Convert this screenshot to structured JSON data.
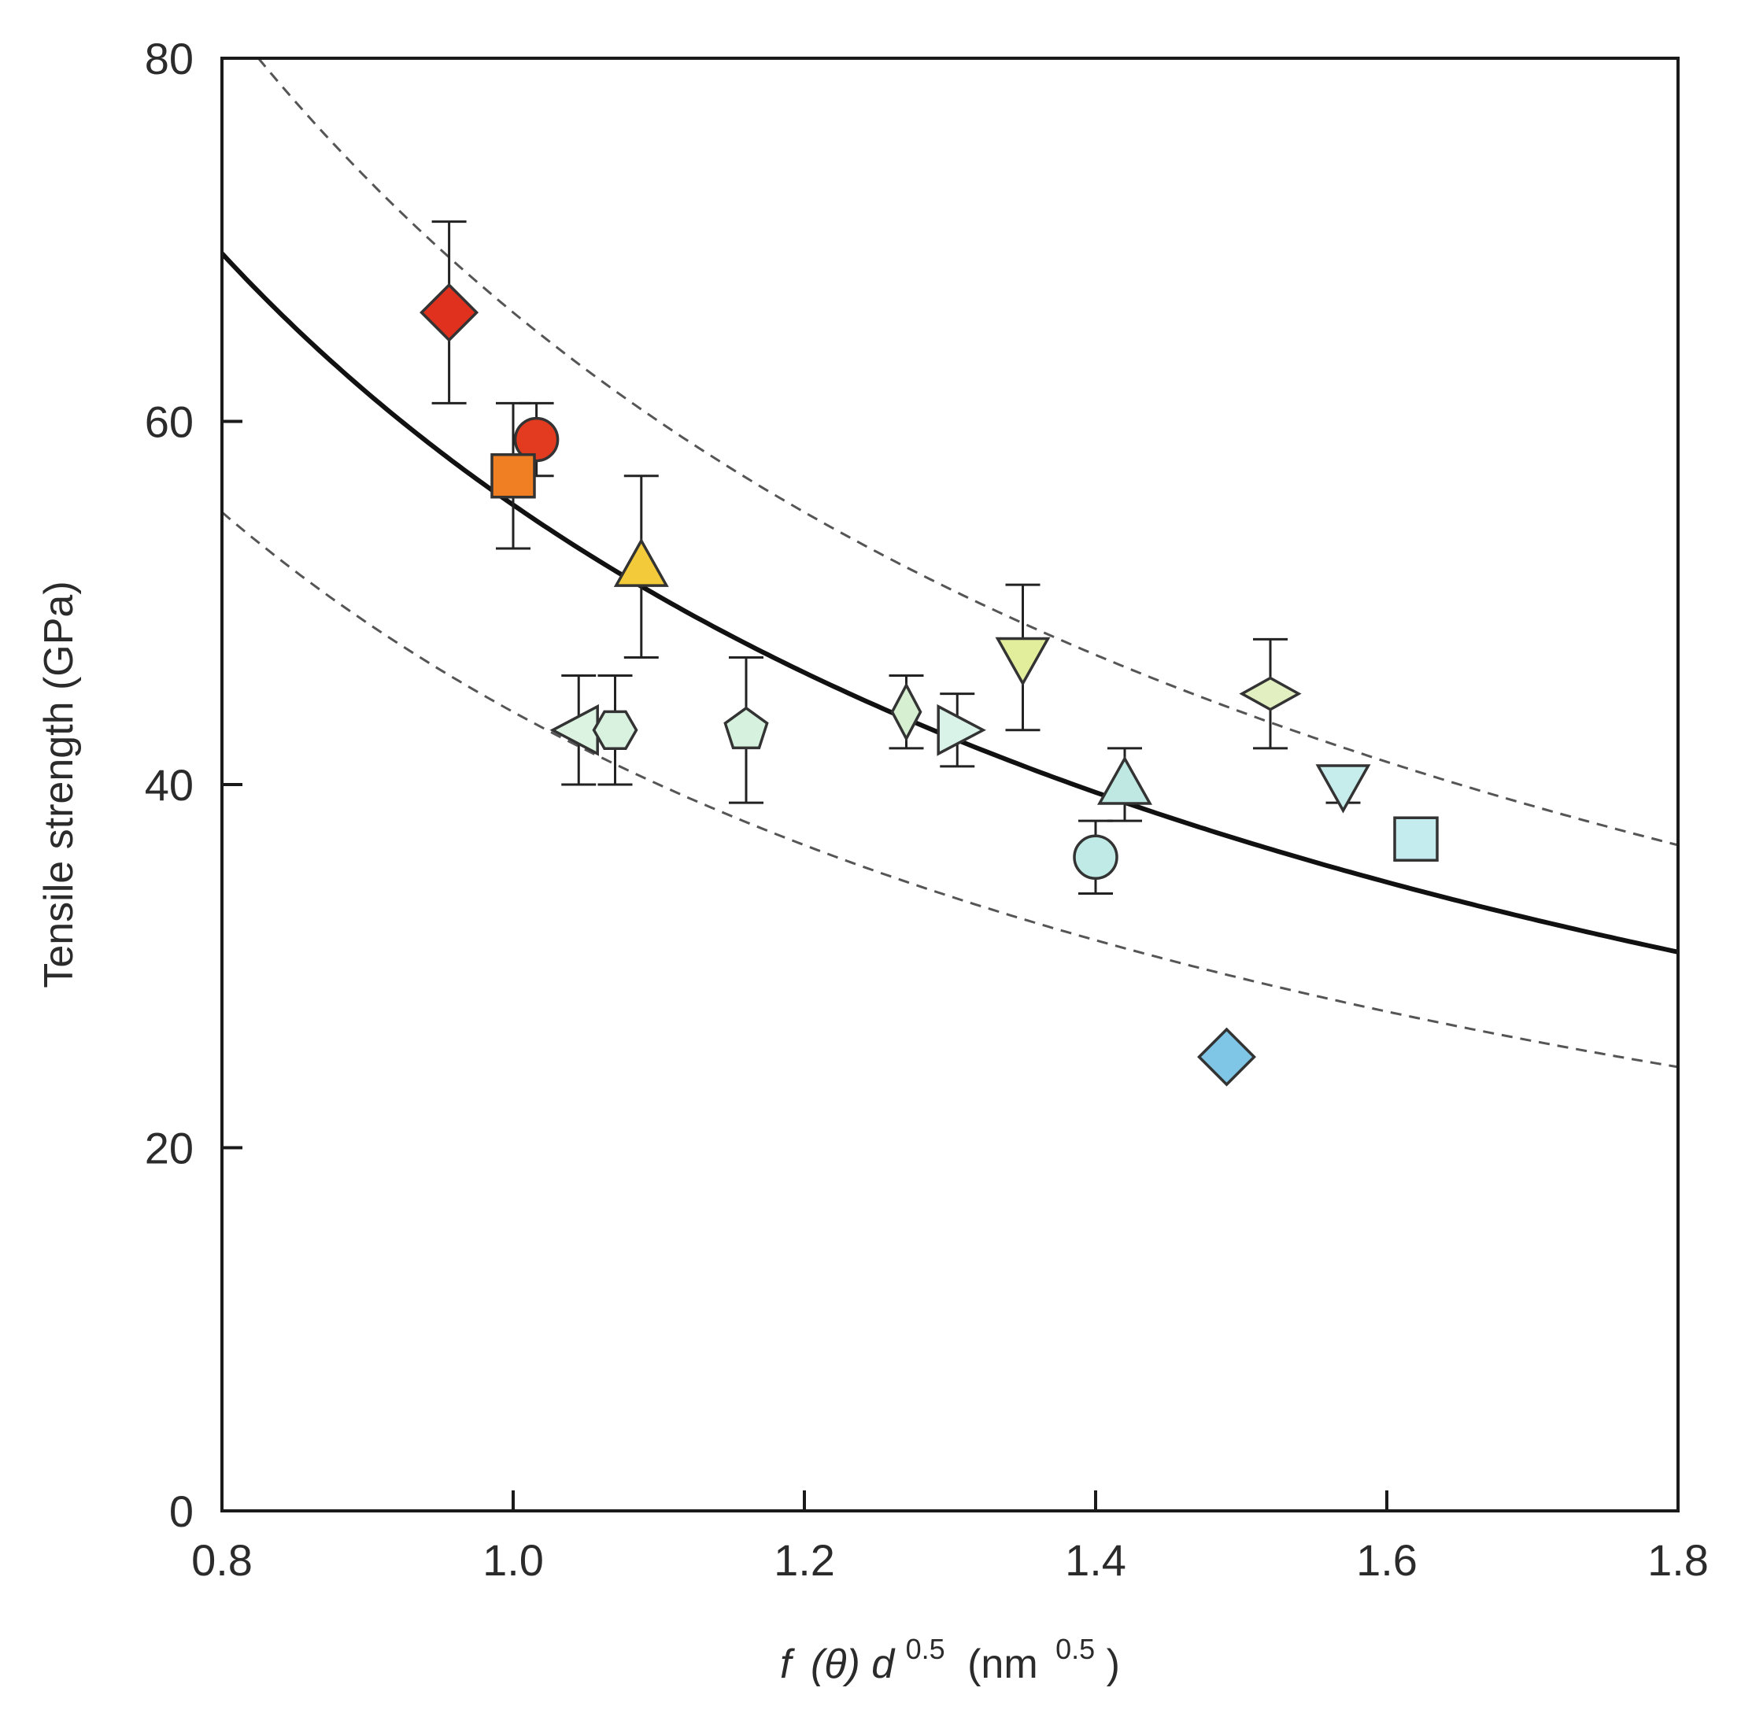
{
  "chart_data": {
    "type": "scatter",
    "title": "",
    "xlabel": {
      "f": "f",
      "theta": "(θ)",
      "d": "d",
      "d_exp": "0.5",
      "unit_open": "(nm",
      "unit_exp": "0.5",
      "unit_close": ")"
    },
    "ylabel": "Tensile strength (GPa)",
    "xlim": [
      0.8,
      1.8
    ],
    "ylim": [
      0,
      80
    ],
    "xticks": [
      0.8,
      1.0,
      1.2,
      1.4,
      1.6,
      1.8
    ],
    "xtick_labels": [
      "0.8",
      "1.0",
      "1.2",
      "1.4",
      "1.6",
      "1.8"
    ],
    "yticks": [
      0,
      20,
      40,
      60,
      80
    ],
    "ytick_labels": [
      "0",
      "20",
      "40",
      "60",
      "80"
    ],
    "fit_curves": [
      {
        "name": "fit",
        "style": "solid",
        "coefficient": 55.4,
        "exponent": -1
      },
      {
        "name": "upper bound",
        "style": "dashed",
        "coefficient": 66.0,
        "exponent": -1
      },
      {
        "name": "lower bound",
        "style": "dashed",
        "coefficient": 44.0,
        "exponent": -1
      }
    ],
    "points": [
      {
        "x": 0.956,
        "y": 66.0,
        "err_low": 61.0,
        "err_high": 71.0,
        "marker": "diamond",
        "color": "#e0301e"
      },
      {
        "x": 1.016,
        "y": 59.0,
        "err_low": 57.0,
        "err_high": 61.0,
        "marker": "circle",
        "color": "#e33b1f"
      },
      {
        "x": 1.0,
        "y": 57.0,
        "err_low": 53.0,
        "err_high": 61.0,
        "marker": "square",
        "color": "#f07e22"
      },
      {
        "x": 1.088,
        "y": 52.0,
        "err_low": 47.0,
        "err_high": 57.0,
        "marker": "triangle-up",
        "color": "#f3cb3a"
      },
      {
        "x": 1.045,
        "y": 43.0,
        "err_low": 40.0,
        "err_high": 46.0,
        "marker": "triangle-left",
        "color": "#dcf3e2"
      },
      {
        "x": 1.07,
        "y": 43.0,
        "err_low": 40.0,
        "err_high": 46.0,
        "marker": "hexagon",
        "color": "#d9f1df"
      },
      {
        "x": 1.16,
        "y": 43.0,
        "err_low": 39.0,
        "err_high": 47.0,
        "marker": "pentagon",
        "color": "#d6f1de"
      },
      {
        "x": 1.27,
        "y": 44.0,
        "err_low": 42.0,
        "err_high": 46.0,
        "marker": "thin-diamond",
        "color": "#d5efd0"
      },
      {
        "x": 1.305,
        "y": 43.0,
        "err_low": 41.0,
        "err_high": 45.0,
        "marker": "triangle-right",
        "color": "#d9f3e8"
      },
      {
        "x": 1.35,
        "y": 47.0,
        "err_low": 43.0,
        "err_high": 51.0,
        "marker": "triangle-down",
        "color": "#e3ee9c"
      },
      {
        "x": 1.42,
        "y": 40.0,
        "err_low": 38.0,
        "err_high": 42.0,
        "marker": "triangle-up",
        "color": "#bfe8e2"
      },
      {
        "x": 1.4,
        "y": 36.0,
        "err_low": 34.0,
        "err_high": 38.0,
        "marker": "circle",
        "color": "#bfeae6"
      },
      {
        "x": 1.52,
        "y": 45.0,
        "err_low": 42.0,
        "err_high": 48.0,
        "marker": "wide-diamond",
        "color": "#e2efc0"
      },
      {
        "x": 1.57,
        "y": 40.0,
        "err_low": 39.0,
        "err_high": 41.0,
        "marker": "triangle-down",
        "color": "#c6ecec"
      },
      {
        "x": 1.62,
        "y": 37.0,
        "err_low": null,
        "err_high": null,
        "marker": "square",
        "color": "#c4ecee"
      },
      {
        "x": 1.49,
        "y": 25.0,
        "err_low": null,
        "err_high": null,
        "marker": "diamond",
        "color": "#7fc6e6"
      }
    ]
  }
}
